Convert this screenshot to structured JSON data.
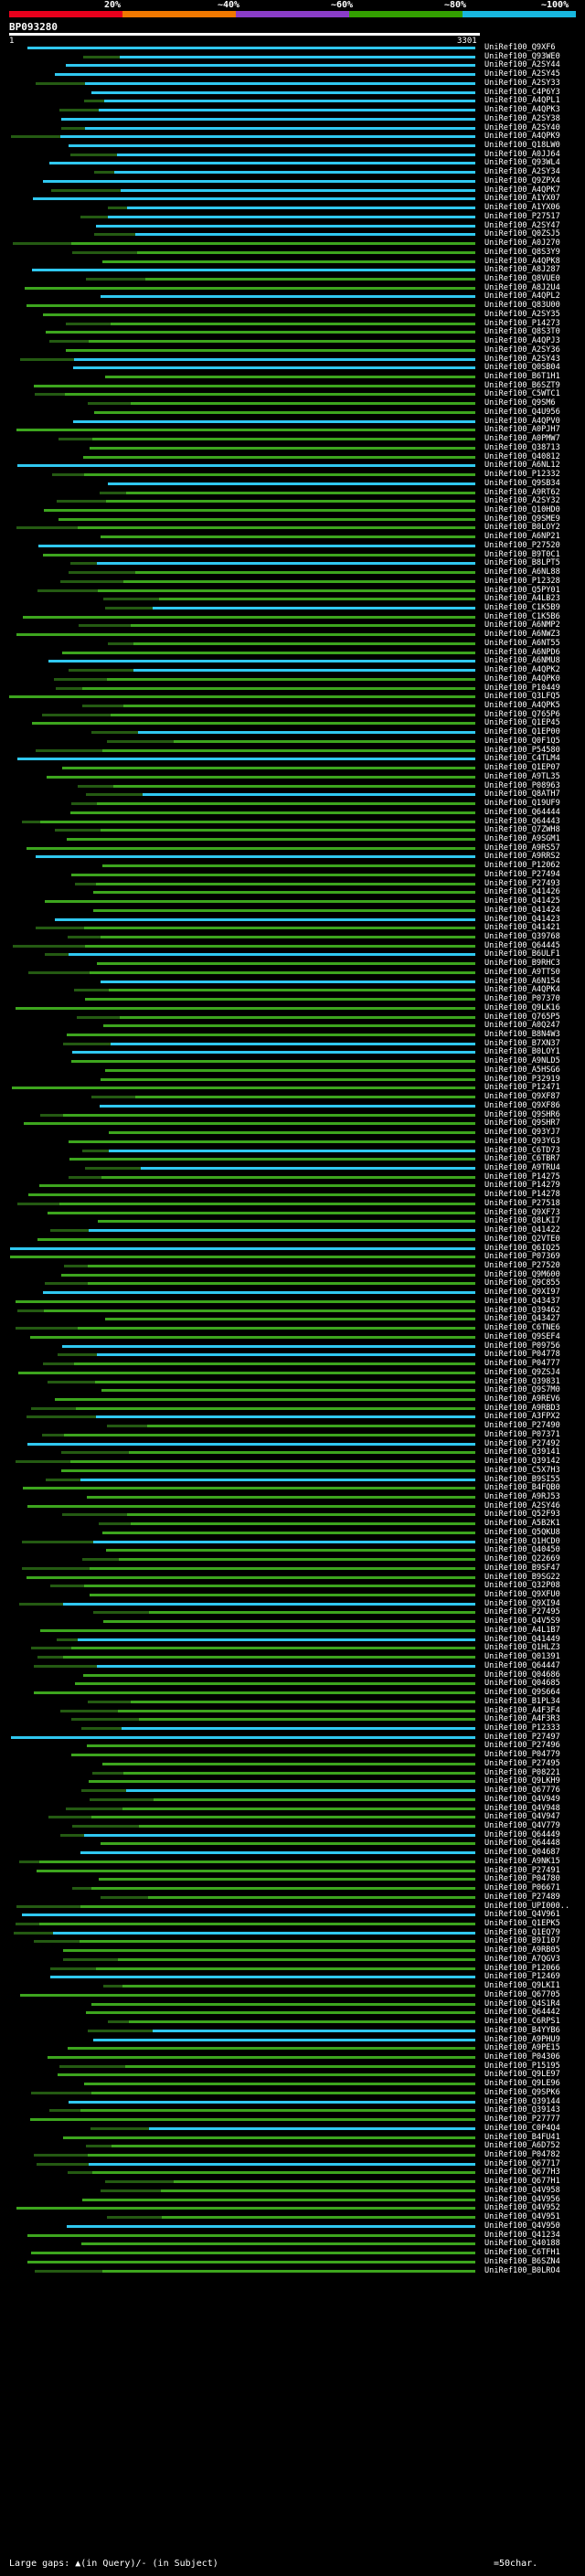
{
  "legend": {
    "ticks": [
      "20%",
      "~40%",
      "~60%",
      "~80%",
      "~100%"
    ],
    "colors": [
      "#e8001c",
      "#f07800",
      "#8a3dc8",
      "#33a000",
      "#18b8e0"
    ]
  },
  "query": {
    "id": "BP093280",
    "start": "1",
    "end": "3301"
  },
  "colors": {
    "high": "#30c8f0",
    "mid": "#3da51e",
    "low": "#245a12",
    "gap": "#7fd54c"
  },
  "hits": [
    "UniRef100_Q9XF6",
    "UniRef100_Q93WE0",
    "UniRef100_A2SY44",
    "UniRef100_A2SY45",
    "UniRef100_A2SY33",
    "UniRef100_C4P6Y3",
    "UniRef100_A4QPL1",
    "UniRef100_A4QPK3",
    "UniRef100_A2SY38",
    "UniRef100_A2SY40",
    "UniRef100_A4QPK9",
    "UniRef100_Q18LW0",
    "UniRef100_A0JJ64",
    "UniRef100_Q93WL4",
    "UniRef100_A2SY34",
    "UniRef100_Q9ZPX4",
    "UniRef100_A4QPK7",
    "UniRef100_A1YX07",
    "UniRef100_A1YX06",
    "UniRef100_P27517",
    "UniRef100_A2SY47",
    "UniRef100_Q0ZSJ5",
    "UniRef100_A0J270",
    "UniRef100_Q8S3Y9",
    "UniRef100_A4QPK8",
    "UniRef100_A8J287",
    "UniRef100_Q8VUE0",
    "UniRef100_A8J2U4",
    "UniRef100_A4QPL2",
    "UniRef100_Q83U00",
    "UniRef100_A2SY35",
    "UniRef100_P14273",
    "UniRef100_Q8S3T0",
    "UniRef100_A4QPJ3",
    "UniRef100_A2SY36",
    "UniRef100_A2SY43",
    "UniRef100_Q0SB04",
    "UniRef100_B6T1H1",
    "UniRef100_B6SZT9",
    "UniRef100_C5WTC1",
    "UniRef100_Q9SM6",
    "UniRef100_Q4U956",
    "UniRef100_A4QPV0",
    "UniRef100_A0PJH7",
    "UniRef100_A0PMW7",
    "UniRef100_Q38713",
    "UniRef100_Q40812",
    "UniRef100_A6NL12",
    "UniRef100_P12332",
    "UniRef100_Q9SB34",
    "UniRef100_A9RT62",
    "UniRef100_A2SY32",
    "UniRef100_Q10HD0",
    "UniRef100_Q9SME9",
    "UniRef100_B0LOY2",
    "UniRef100_A6NP21",
    "UniRef100_P27520",
    "UniRef100_B9T0C1",
    "UniRef100_B8LPT5",
    "UniRef100_A6NL88",
    "UniRef100_P12328",
    "UniRef100_Q5PY01",
    "UniRef100_A4LB23",
    "UniRef100_C1K5B9",
    "UniRef100_C1K5B6",
    "UniRef100_A6NMP2",
    "UniRef100_A6NWZ3",
    "UniRef100_A6NT55",
    "UniRef100_A6NPD6",
    "UniRef100_A6NMU8",
    "UniRef100_A4QPK2",
    "UniRef100_A4QPK0",
    "UniRef100_P10449",
    "UniRef100_Q3LFQ5",
    "UniRef100_A4QPK5",
    "UniRef100_Q765P6",
    "UniRef100_Q1EP45",
    "UniRef100_Q1EP00",
    "UniRef100_Q0F1Q5",
    "UniRef100_P54580",
    "UniRef100_C4TLM4",
    "UniRef100_Q1EP07",
    "UniRef100_A9TL35",
    "UniRef100_P08963",
    "UniRef100_Q8ATH7",
    "UniRef100_Q19UF9",
    "UniRef100_Q64444",
    "UniRef100_Q64443",
    "UniRef100_Q7ZWH8",
    "UniRef100_A9SGM1",
    "UniRef100_A9RS57",
    "UniRef100_A9RRS2",
    "UniRef100_P12062",
    "UniRef100_P27494",
    "UniRef100_P27493",
    "UniRef100_Q41426",
    "UniRef100_Q41425",
    "UniRef100_Q41424",
    "UniRef100_Q41423",
    "UniRef100_Q41421",
    "UniRef100_Q39768",
    "UniRef100_Q64445",
    "UniRef100_B6ULF1",
    "UniRef100_B9RHC3",
    "UniRef100_A9TTS0",
    "UniRef100_A6N154",
    "UniRef100_A4QPK4",
    "UniRef100_P07370",
    "UniRef100_Q9LK16",
    "UniRef100_Q765P5",
    "UniRef100_A0Q247",
    "UniRef100_B8N4W3",
    "UniRef100_B7XN37",
    "UniRef100_B0LOY1",
    "UniRef100_A9NLD5",
    "UniRef100_A5HSG6",
    "UniRef100_P32919",
    "UniRef100_P12471",
    "UniRef100_Q9XF87",
    "UniRef100_Q9XF86",
    "UniRef100_Q9SHR6",
    "UniRef100_Q9SHR7",
    "UniRef100_Q93YJ7",
    "UniRef100_Q93YG3",
    "UniRef100_C6TD73",
    "UniRef100_C6TBR7",
    "UniRef100_A9TRU4",
    "UniRef100_P14275",
    "UniRef100_P14279",
    "UniRef100_P14278",
    "UniRef100_P27518",
    "UniRef100_Q9XF73",
    "UniRef100_Q8LKI7",
    "UniRef100_Q41422",
    "UniRef100_Q2VTE0",
    "UniRef100_Q6IQ25",
    "UniRef100_P07369",
    "UniRef100_P27520",
    "UniRef100_Q9M600",
    "UniRef100_Q9C855",
    "UniRef100_Q9XI97",
    "UniRef100_Q43437",
    "UniRef100_Q39462",
    "UniRef100_Q43427",
    "UniRef100_C6TNE6",
    "UniRef100_Q9SEF4",
    "UniRef100_P09756",
    "UniRef100_P04778",
    "UniRef100_P04777",
    "UniRef100_Q9ZSJ4",
    "UniRef100_Q39831",
    "UniRef100_Q9S7M0",
    "UniRef100_A9REV6",
    "UniRef100_A9RBD3",
    "UniRef100_A3FPX2",
    "UniRef100_P27490",
    "UniRef100_P07371",
    "UniRef100_P27492",
    "UniRef100_Q39141",
    "UniRef100_Q39142",
    "UniRef100_C5X7H3",
    "UniRef100_B9SI55",
    "UniRef100_B4FQB0",
    "UniRef100_A9RJ53",
    "UniRef100_A2SY46",
    "UniRef100_Q52F93",
    "UniRef100_A5B2K1",
    "UniRef100_Q5QKU8",
    "UniRef100_Q1HCD0",
    "UniRef100_Q40450",
    "UniRef100_Q22669",
    "UniRef100_B9SF47",
    "UniRef100_B9SG22",
    "UniRef100_Q32P08",
    "UniRef100_Q9XFU0",
    "UniRef100_Q9XI94",
    "UniRef100_P27495",
    "UniRef100_Q4V5S9",
    "UniRef100_A4L1B7",
    "UniRef100_Q41449",
    "UniRef100_Q1HLZ3",
    "UniRef100_Q01391",
    "UniRef100_Q64447",
    "UniRef100_Q04686",
    "UniRef100_Q04685",
    "UniRef100_Q9S664",
    "UniRef100_B1PL34",
    "UniRef100_A4F3F4",
    "UniRef100_A4F3R3",
    "UniRef100_P12333",
    "UniRef100_P27497",
    "UniRef100_P27496",
    "UniRef100_P04779",
    "UniRef100_P27495",
    "UniRef100_P08221",
    "UniRef100_Q9LKH9",
    "UniRef100_Q67776",
    "UniRef100_Q4V949",
    "UniRef100_Q4V948",
    "UniRef100_Q4V947",
    "UniRef100_Q4V779",
    "UniRef100_Q64449",
    "UniRef100_Q64448",
    "UniRef100_Q04687",
    "UniRef100_A9NK15",
    "UniRef100_P27491",
    "UniRef100_P04780",
    "UniRef100_P06671",
    "UniRef100_P27489",
    "UniRef100_UPI000..",
    "UniRef100_Q4V961",
    "UniRef100_Q1EPK5",
    "UniRef100_Q1EQ79",
    "UniRef100_B9I107",
    "UniRef100_A9RB05",
    "UniRef100_A7QGV3",
    "UniRef100_P12066",
    "UniRef100_P12469",
    "UniRef100_Q9LKI1",
    "UniRef100_Q67705",
    "UniRef100_Q4S1R4",
    "UniRef100_Q64442",
    "UniRef100_C6RPS1",
    "UniRef100_B4YYB6",
    "UniRef100_A9PHU9",
    "UniRef100_A9PE15",
    "UniRef100_P04306",
    "UniRef100_P15195",
    "UniRef100_Q9LE97",
    "UniRef100_Q9LE96",
    "UniRef100_Q9SPK6",
    "UniRef100_Q39144",
    "UniRef100_Q39143",
    "UniRef100_P27777",
    "UniRef100_C0P4Q4",
    "UniRef100_B4FU41",
    "UniRef100_A6D752",
    "UniRef100_P04782",
    "UniRef100_Q67717",
    "UniRef100_Q677H3",
    "UniRef100_Q677H1",
    "UniRef100_Q4V958",
    "UniRef100_Q4V956",
    "UniRef100_Q4V952",
    "UniRef100_Q4V951",
    "UniRef100_Q4V950",
    "UniRef100_Q41234",
    "UniRef100_Q40188",
    "UniRef100_C6TFH1",
    "UniRef100_B6SZN4",
    "UniRef100_B0LRO4"
  ],
  "footer": {
    "text": "Large gaps: ▲(in Query)/- (in Subject)",
    "scale": "=50char."
  }
}
